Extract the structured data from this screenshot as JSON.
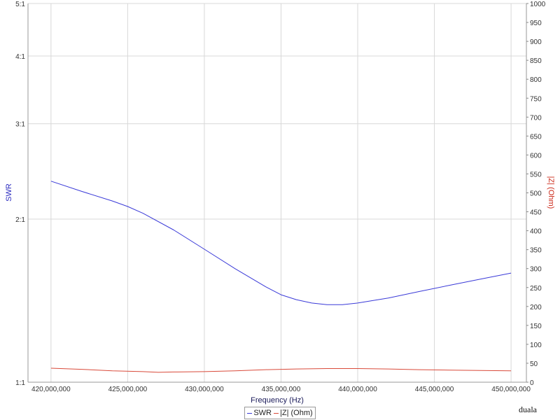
{
  "chart_data": {
    "type": "line",
    "xlabel": "Frequency (Hz)",
    "ylabel_left": "SWR",
    "ylabel_right": "|Z| (Ohm)",
    "x_ticks": [
      "420,000,000",
      "425,000,000",
      "430,000,000",
      "435,000,000",
      "440,000,000",
      "445,000,000",
      "450,000,000"
    ],
    "y_left_ticks": [
      {
        "value": 1,
        "label": "1:1"
      },
      {
        "value": 2,
        "label": "2:1"
      },
      {
        "value": 3,
        "label": "3:1"
      },
      {
        "value": 4,
        "label": "4:1"
      },
      {
        "value": 5,
        "label": "5:1"
      }
    ],
    "y_right_ticks": [
      0,
      50,
      100,
      150,
      200,
      250,
      300,
      350,
      400,
      450,
      500,
      550,
      600,
      650,
      700,
      750,
      800,
      850,
      900,
      950,
      1000
    ],
    "y_left_scale": "log",
    "xlim": [
      418500000,
      451000000
    ],
    "ylim_left": [
      1,
      5
    ],
    "ylim_right": [
      0,
      1000
    ],
    "series": [
      {
        "name": "SWR",
        "axis": "left",
        "color": "#3a3ad8",
        "x": [
          420000000,
          422000000,
          424000000,
          425000000,
          426000000,
          428000000,
          430000000,
          432000000,
          434000000,
          435000000,
          436000000,
          437000000,
          438000000,
          439000000,
          440000000,
          442000000,
          444000000,
          446000000,
          448000000,
          450000000
        ],
        "values": [
          2.35,
          2.25,
          2.16,
          2.11,
          2.05,
          1.91,
          1.76,
          1.62,
          1.5,
          1.45,
          1.42,
          1.4,
          1.39,
          1.39,
          1.4,
          1.43,
          1.47,
          1.51,
          1.55,
          1.59
        ]
      },
      {
        "name": "|Z| (Ohm)",
        "axis": "right",
        "color": "#d94a3a",
        "x": [
          420000000,
          422000000,
          424000000,
          426000000,
          427000000,
          428000000,
          430000000,
          432000000,
          434000000,
          436000000,
          438000000,
          440000000,
          442000000,
          444000000,
          446000000,
          448000000,
          450000000
        ],
        "values": [
          37,
          34,
          30,
          28,
          26,
          27,
          28,
          30,
          33,
          35,
          36,
          36,
          35,
          33,
          32,
          31,
          30
        ]
      }
    ],
    "grid": true,
    "legend_position": "bottom-center"
  },
  "legend": {
    "swr_label": "SWR",
    "z_label": "|Z| (Ohm)"
  },
  "credit": "duala"
}
